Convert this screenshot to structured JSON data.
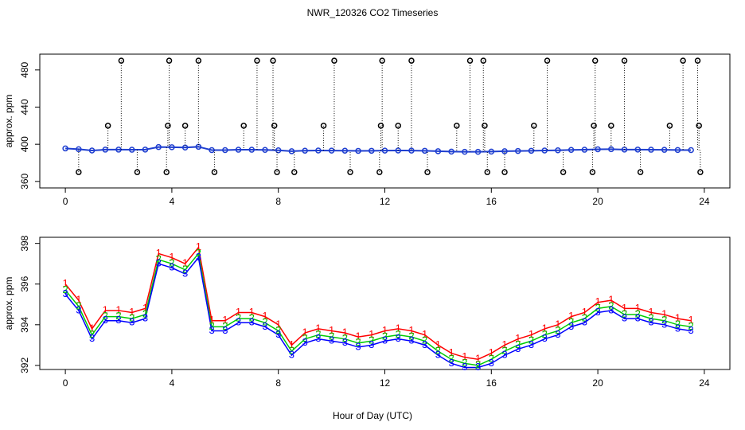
{
  "chart_data": [
    {
      "type": "scatter",
      "title": "NWR_120326  CO2 Timeseries",
      "y_label": "approx. ppm",
      "xlim": [
        -0.96,
        24.96
      ],
      "xticks": [
        0,
        4,
        8,
        12,
        16,
        20,
        24
      ],
      "ylim": [
        353,
        497
      ],
      "yticks": [
        360,
        400,
        440,
        480
      ],
      "series": [
        {
          "color": "#1f3fd0",
          "x": [
            0,
            0.5,
            1,
            1.5,
            2,
            2.5,
            3,
            3.5,
            4,
            4.5,
            5,
            5.5,
            6,
            6.5,
            7,
            7.5,
            8,
            8.5,
            9,
            9.5,
            10,
            10.5,
            11,
            11.5,
            12,
            12.5,
            13,
            13.5,
            14,
            14.5,
            15,
            15.5,
            16,
            16.5,
            17,
            17.5,
            18,
            18.5,
            19,
            19.5,
            20,
            20.5,
            21,
            21.5,
            22,
            22.5,
            23,
            23.5
          ],
          "values": [
            395.5,
            394.7,
            393.3,
            394.2,
            394.2,
            394.1,
            394.3,
            397.0,
            396.8,
            396.5,
            397.3,
            393.7,
            393.7,
            394.1,
            394.1,
            393.9,
            393.5,
            392.5,
            393.1,
            393.3,
            393.2,
            393.1,
            392.9,
            393.0,
            393.2,
            393.3,
            393.2,
            393.0,
            392.5,
            392.1,
            391.9,
            391.9,
            392.1,
            392.5,
            392.8,
            393.0,
            393.3,
            393.5,
            393.9,
            394.1,
            394.6,
            394.7,
            394.3,
            394.3,
            394.1,
            394.0,
            393.8,
            393.7
          ]
        },
        {
          "color": "#000000",
          "x": [
            0.5,
            1.6,
            2.1,
            2.7,
            3.8,
            3.85,
            3.9,
            4.5,
            5.0,
            5.6,
            6.7,
            7.2,
            7.8,
            7.85,
            7.95,
            8.6,
            9.7,
            10.1,
            10.7,
            11.8,
            11.85,
            11.9,
            12.5,
            13.0,
            13.6,
            14.7,
            15.2,
            15.7,
            15.75,
            15.85,
            16.5,
            17.6,
            18.1,
            18.7,
            19.8,
            19.85,
            19.9,
            20.5,
            21.0,
            21.6,
            22.7,
            23.2,
            23.75,
            23.8,
            23.85
          ],
          "values": [
            370,
            420,
            490,
            370,
            370,
            420,
            490,
            420,
            490,
            370,
            420,
            490,
            490,
            420,
            370,
            370,
            420,
            490,
            370,
            370,
            420,
            490,
            420,
            490,
            370,
            420,
            490,
            490,
            420,
            370,
            370,
            420,
            490,
            370,
            370,
            420,
            490,
            420,
            490,
            370,
            420,
            490,
            490,
            420,
            370
          ]
        }
      ]
    },
    {
      "type": "line",
      "y_label": "approx. ppm",
      "x_label": "Hour of Day (UTC)",
      "xlim": [
        -0.96,
        24.96
      ],
      "xticks": [
        0,
        4,
        8,
        12,
        16,
        20,
        24
      ],
      "ylim": [
        391.8,
        398.3
      ],
      "yticks": [
        392,
        394,
        396,
        398
      ],
      "x": [
        0,
        0.5,
        1,
        1.5,
        2,
        2.5,
        3,
        3.5,
        4,
        4.5,
        5,
        5.5,
        6,
        6.5,
        7,
        7.5,
        8,
        8.5,
        9,
        9.5,
        10,
        10.5,
        11,
        11.5,
        12,
        12.5,
        13,
        13.5,
        14,
        14.5,
        15,
        15.5,
        16,
        16.5,
        17,
        17.5,
        18,
        18.5,
        19,
        19.5,
        20,
        20.5,
        21,
        21.5,
        22,
        22.5,
        23,
        23.5
      ],
      "series": [
        {
          "marker": "1",
          "color": "#ff0000",
          "values": [
            396.0,
            395.2,
            393.8,
            394.7,
            394.7,
            394.6,
            394.8,
            397.5,
            397.3,
            397.0,
            397.8,
            394.2,
            394.2,
            394.6,
            394.6,
            394.4,
            394.0,
            393.0,
            393.6,
            393.8,
            393.7,
            393.6,
            393.4,
            393.5,
            393.7,
            393.8,
            393.7,
            393.5,
            393.0,
            392.6,
            392.4,
            392.3,
            392.6,
            393.0,
            393.3,
            393.5,
            393.8,
            394.0,
            394.4,
            394.6,
            395.1,
            395.2,
            394.8,
            394.8,
            394.6,
            394.5,
            394.3,
            394.2
          ]
        },
        {
          "marker": "2",
          "color": "#00cd00",
          "values": [
            395.7,
            394.9,
            393.5,
            394.4,
            394.4,
            394.3,
            394.5,
            397.2,
            397.0,
            396.7,
            397.5,
            393.9,
            393.9,
            394.3,
            394.3,
            394.1,
            393.7,
            392.7,
            393.3,
            393.5,
            393.4,
            393.3,
            393.1,
            393.2,
            393.4,
            393.5,
            393.4,
            393.2,
            392.7,
            392.3,
            392.1,
            392.0,
            392.3,
            392.7,
            393.0,
            393.2,
            393.5,
            393.7,
            394.1,
            394.3,
            394.8,
            394.9,
            394.5,
            394.5,
            394.3,
            394.2,
            394.0,
            393.9
          ]
        },
        {
          "marker": "3",
          "color": "#0000ff",
          "values": [
            395.5,
            394.7,
            393.3,
            394.2,
            394.2,
            394.1,
            394.3,
            397.0,
            396.8,
            396.5,
            397.3,
            393.7,
            393.7,
            394.1,
            394.1,
            393.9,
            393.5,
            392.5,
            393.1,
            393.3,
            393.2,
            393.1,
            392.9,
            393.0,
            393.2,
            393.3,
            393.2,
            393.0,
            392.5,
            392.1,
            391.9,
            391.9,
            392.1,
            392.5,
            392.8,
            393.0,
            393.3,
            393.5,
            393.9,
            394.1,
            394.6,
            394.7,
            394.3,
            394.3,
            394.1,
            394.0,
            393.8,
            393.7
          ]
        }
      ]
    }
  ]
}
